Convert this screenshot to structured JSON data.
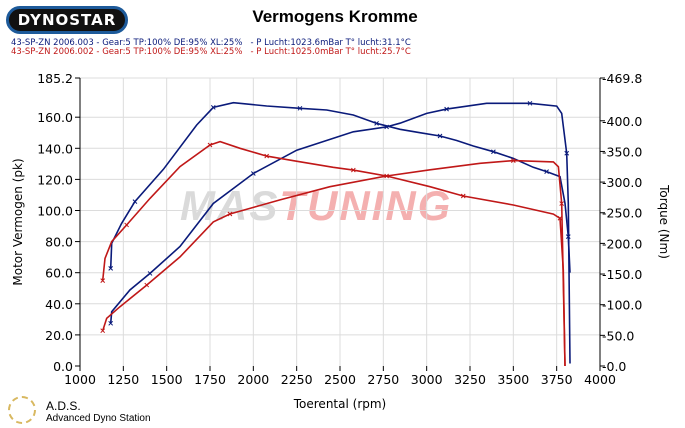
{
  "header": {
    "logo": "DYNOSTAR",
    "title": "Vermogens Kromme",
    "legend": [
      {
        "text": "43-SP-ZN 2006.003 - Gear:5 TP:100% DE:95% XL:25%   - P Lucht:1023.6mBar T° lucht:31.1°C",
        "color": "#0a1a7a"
      },
      {
        "text": "43-SP-ZN 2006.002 - Gear:5 TP:100% DE:95% XL:25%   - P Lucht:1025.0mBar T° lucht:25.7°C",
        "color": "#c01818"
      }
    ]
  },
  "watermark": {
    "part1": "MAS",
    "part2": "TUNING"
  },
  "footer": {
    "brand": "A.D.S.",
    "subtitle": "Advanced Dyno Station"
  },
  "chart_data": {
    "type": "line",
    "title": "Vermogens Kromme",
    "xlabel": "Toerental (rpm)",
    "ylabel": "Motor Vermogen (pk)",
    "y2label": "Torque (Nm)",
    "xlim": [
      1000,
      4000
    ],
    "ylim": [
      0,
      185.2
    ],
    "y2lim": [
      0,
      469.8
    ],
    "grid": true,
    "xticks": [
      1000,
      1250,
      1500,
      1750,
      2000,
      2250,
      2500,
      2750,
      3000,
      3250,
      3500,
      3750,
      4000
    ],
    "yticks": [
      "0.0",
      "20.0",
      "40.0",
      "60.0",
      "80.0",
      "100.0",
      "120.0",
      "140.0",
      "160.0",
      "185.2"
    ],
    "y2ticks": [
      "-0.0",
      "-50.0",
      "-100.0",
      "-150.0",
      "-200.0",
      "-250.0",
      "-300.0",
      "-350.0",
      "-400.0",
      "-469.8"
    ],
    "series": [
      {
        "name": "2006.003 Vermogen (pk)",
        "axis": "left",
        "color": "#0a1a7a",
        "x": [
          1177,
          1183,
          1240,
          1317,
          1481,
          1673,
          1769,
          1885,
          2077,
          2269,
          2423,
          2577,
          2711,
          2846,
          2961,
          3077,
          3173,
          3269,
          3385,
          3500,
          3615,
          3692,
          3769,
          3798,
          3817,
          3827
        ],
        "y": [
          62.8,
          78.9,
          91.7,
          105.7,
          126.5,
          155,
          166.3,
          169.3,
          167.2,
          165.7,
          164.6,
          161.4,
          156,
          152.2,
          150,
          147.9,
          145,
          141.5,
          137.8,
          133.5,
          127.8,
          125,
          121.8,
          104.6,
          83.2,
          60
        ]
      },
      {
        "name": "2006.003 Torque (Nm)",
        "axis": "right",
        "color": "#0a1a7a",
        "x": [
          1177,
          1183,
          1288,
          1404,
          1577,
          1769,
          2000,
          2250,
          2577,
          2769,
          2846,
          3000,
          3115,
          3346,
          3461,
          3596,
          3750,
          3779,
          3808,
          3817,
          3827
        ],
        "y": [
          69.6,
          88.6,
          124,
          151,
          195,
          265,
          314,
          352,
          382,
          390,
          396,
          412,
          419,
          428.5,
          428.5,
          428.5,
          424,
          412,
          347,
          265,
          4
        ]
      },
      {
        "name": "2006.002 Vermogen (pk)",
        "axis": "left",
        "color": "#c01818",
        "x": [
          1131,
          1144,
          1183,
          1269,
          1404,
          1577,
          1750,
          1808,
          1923,
          2077,
          2231,
          2461,
          2577,
          2769,
          3019,
          3211,
          3500,
          3731,
          3769,
          3788,
          3798
        ],
        "y": [
          54.9,
          69.2,
          80,
          90.7,
          107.8,
          128.2,
          142.1,
          144.3,
          140,
          135,
          132,
          127.8,
          126,
          122.2,
          115.3,
          109.3,
          103.5,
          97.7,
          95,
          61.7,
          0
        ]
      },
      {
        "name": "2006.002 Torque (Nm)",
        "axis": "right",
        "color": "#c01818",
        "x": [
          1131,
          1154,
          1231,
          1385,
          1577,
          1769,
          1865,
          2154,
          2442,
          2769,
          3019,
          3308,
          3500,
          3731,
          3760,
          3779,
          3798
        ],
        "y": [
          57.6,
          77.8,
          96.8,
          132,
          178,
          235,
          248,
          271,
          292.5,
          310,
          320,
          330.6,
          335,
          333,
          325,
          265,
          0
        ]
      }
    ]
  }
}
